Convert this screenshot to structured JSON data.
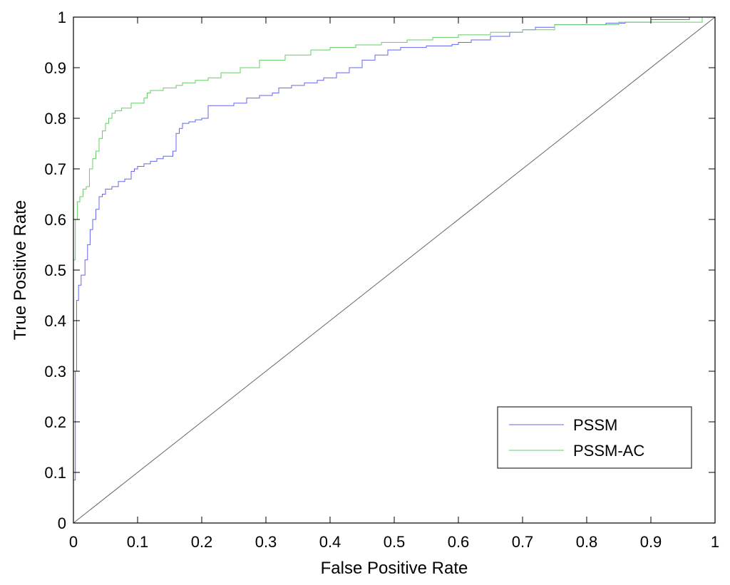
{
  "chart_data": {
    "type": "line",
    "title": "",
    "xlabel": "False Positive Rate",
    "ylabel": "True Positive Rate",
    "xlim": [
      0,
      1
    ],
    "ylim": [
      0,
      1
    ],
    "xticks": [
      "0",
      "0.1",
      "0.2",
      "0.3",
      "0.4",
      "0.5",
      "0.6",
      "0.7",
      "0.8",
      "0.9",
      "1"
    ],
    "yticks": [
      "0",
      "0.1",
      "0.2",
      "0.3",
      "0.4",
      "0.5",
      "0.6",
      "0.7",
      "0.8",
      "0.9",
      "1"
    ],
    "grid": false,
    "legend_position": "bottom-right",
    "series": [
      {
        "name": "PSSM",
        "color": "#6666ee",
        "x": [
          0,
          0,
          0.003,
          0.003,
          0.005,
          0.005,
          0.008,
          0.008,
          0.012,
          0.012,
          0.018,
          0.018,
          0.022,
          0.022,
          0.026,
          0.026,
          0.03,
          0.03,
          0.035,
          0.035,
          0.04,
          0.04,
          0.045,
          0.045,
          0.05,
          0.05,
          0.06,
          0.06,
          0.07,
          0.07,
          0.08,
          0.08,
          0.09,
          0.09,
          0.095,
          0.095,
          0.1,
          0.1,
          0.11,
          0.11,
          0.12,
          0.12,
          0.13,
          0.13,
          0.14,
          0.14,
          0.155,
          0.155,
          0.16,
          0.16,
          0.165,
          0.165,
          0.17,
          0.17,
          0.18,
          0.18,
          0.19,
          0.19,
          0.2,
          0.2,
          0.21,
          0.21,
          0.25,
          0.25,
          0.27,
          0.27,
          0.29,
          0.29,
          0.31,
          0.31,
          0.32,
          0.32,
          0.34,
          0.34,
          0.36,
          0.36,
          0.38,
          0.38,
          0.39,
          0.39,
          0.41,
          0.41,
          0.43,
          0.43,
          0.45,
          0.45,
          0.47,
          0.47,
          0.49,
          0.49,
          0.51,
          0.51,
          0.55,
          0.55,
          0.59,
          0.59,
          0.6,
          0.6,
          0.62,
          0.62,
          0.65,
          0.65,
          0.68,
          0.68,
          0.7,
          0.7,
          0.72,
          0.72,
          0.75,
          0.75,
          0.83,
          0.83,
          0.86,
          0.86,
          0.9,
          0.9,
          0.96,
          0.96,
          1.0
        ],
        "y": [
          0,
          0.085,
          0.085,
          0.3,
          0.3,
          0.44,
          0.44,
          0.47,
          0.47,
          0.49,
          0.49,
          0.52,
          0.52,
          0.55,
          0.55,
          0.58,
          0.58,
          0.6,
          0.6,
          0.62,
          0.62,
          0.645,
          0.645,
          0.65,
          0.65,
          0.66,
          0.66,
          0.665,
          0.665,
          0.675,
          0.675,
          0.68,
          0.68,
          0.695,
          0.695,
          0.7,
          0.7,
          0.705,
          0.705,
          0.71,
          0.71,
          0.715,
          0.715,
          0.72,
          0.72,
          0.725,
          0.725,
          0.735,
          0.735,
          0.77,
          0.77,
          0.78,
          0.78,
          0.79,
          0.79,
          0.793,
          0.793,
          0.797,
          0.797,
          0.8,
          0.8,
          0.825,
          0.825,
          0.83,
          0.83,
          0.84,
          0.84,
          0.845,
          0.845,
          0.85,
          0.85,
          0.86,
          0.86,
          0.865,
          0.865,
          0.87,
          0.87,
          0.875,
          0.875,
          0.88,
          0.88,
          0.89,
          0.89,
          0.9,
          0.9,
          0.915,
          0.915,
          0.925,
          0.925,
          0.935,
          0.935,
          0.94,
          0.94,
          0.943,
          0.943,
          0.946,
          0.946,
          0.95,
          0.95,
          0.955,
          0.955,
          0.962,
          0.962,
          0.97,
          0.97,
          0.975,
          0.975,
          0.98,
          0.98,
          0.985,
          0.985,
          0.988,
          0.988,
          0.99,
          0.99,
          0.995,
          0.995,
          1.0,
          1.0
        ]
      },
      {
        "name": "PSSM-AC",
        "color": "#66cc66",
        "x": [
          0,
          0,
          0.003,
          0.003,
          0.006,
          0.006,
          0.01,
          0.01,
          0.015,
          0.015,
          0.02,
          0.02,
          0.025,
          0.025,
          0.03,
          0.03,
          0.035,
          0.035,
          0.04,
          0.04,
          0.045,
          0.045,
          0.05,
          0.05,
          0.055,
          0.055,
          0.06,
          0.06,
          0.065,
          0.065,
          0.075,
          0.075,
          0.09,
          0.09,
          0.11,
          0.11,
          0.115,
          0.115,
          0.12,
          0.12,
          0.14,
          0.14,
          0.16,
          0.16,
          0.17,
          0.17,
          0.19,
          0.19,
          0.21,
          0.21,
          0.23,
          0.23,
          0.26,
          0.26,
          0.29,
          0.29,
          0.33,
          0.33,
          0.37,
          0.37,
          0.4,
          0.4,
          0.44,
          0.44,
          0.48,
          0.48,
          0.52,
          0.52,
          0.56,
          0.56,
          0.6,
          0.6,
          0.65,
          0.65,
          0.7,
          0.7,
          0.75,
          0.75,
          0.85,
          0.85,
          0.98,
          0.98,
          1.0
        ],
        "y": [
          0,
          0.52,
          0.52,
          0.6,
          0.6,
          0.635,
          0.635,
          0.645,
          0.645,
          0.66,
          0.66,
          0.665,
          0.665,
          0.7,
          0.7,
          0.72,
          0.72,
          0.735,
          0.735,
          0.76,
          0.76,
          0.775,
          0.775,
          0.79,
          0.79,
          0.8,
          0.8,
          0.81,
          0.81,
          0.815,
          0.815,
          0.82,
          0.82,
          0.83,
          0.83,
          0.84,
          0.84,
          0.85,
          0.85,
          0.855,
          0.855,
          0.86,
          0.86,
          0.865,
          0.865,
          0.87,
          0.87,
          0.875,
          0.875,
          0.88,
          0.88,
          0.89,
          0.89,
          0.9,
          0.9,
          0.915,
          0.915,
          0.925,
          0.925,
          0.935,
          0.935,
          0.94,
          0.94,
          0.945,
          0.945,
          0.95,
          0.95,
          0.955,
          0.955,
          0.96,
          0.96,
          0.965,
          0.965,
          0.97,
          0.97,
          0.975,
          0.975,
          0.985,
          0.985,
          0.99,
          0.99,
          1.0,
          1.0
        ]
      },
      {
        "name": "",
        "color": "#666666",
        "x": [
          0,
          1
        ],
        "y": [
          0,
          1
        ]
      }
    ]
  }
}
